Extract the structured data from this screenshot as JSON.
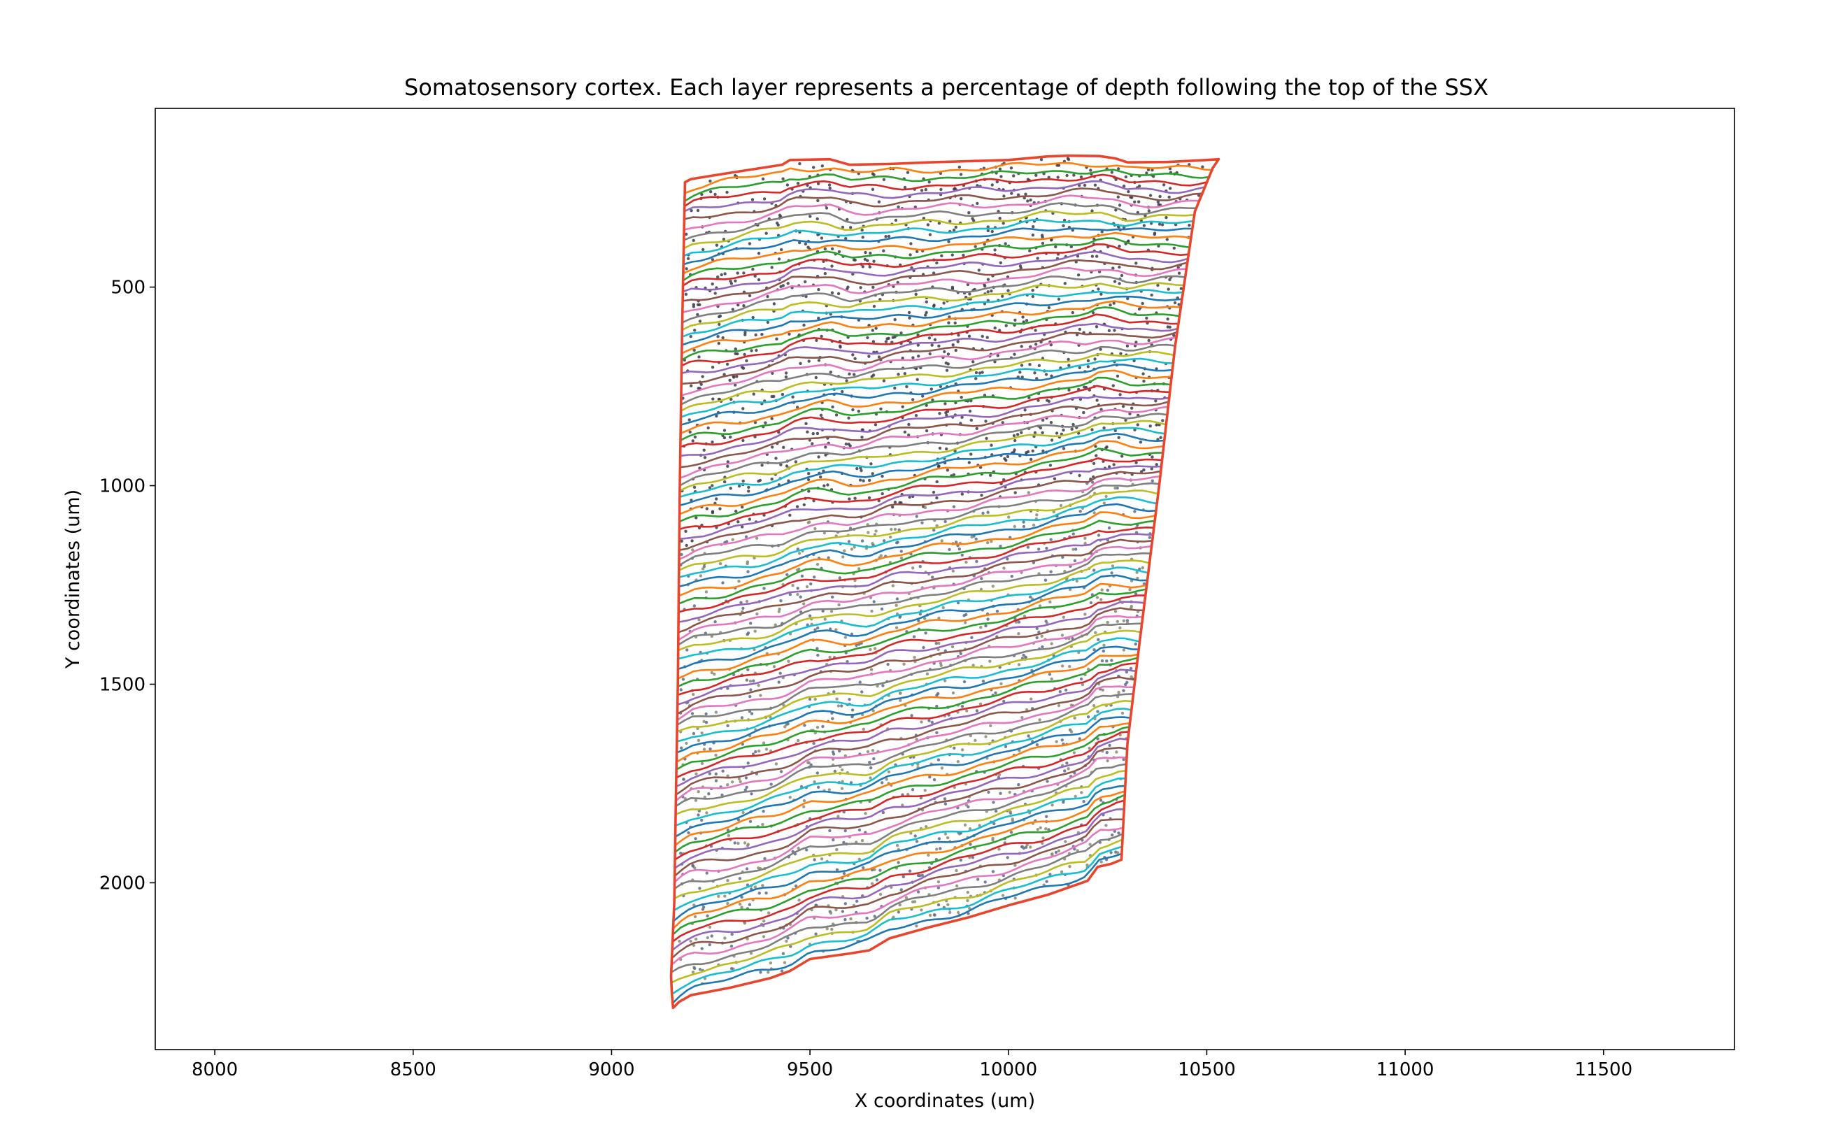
{
  "chart_data": {
    "type": "line",
    "title": "Somatosensory cortex. Each layer represents a percentage of depth following the top of the SSX",
    "xlabel": "X coordinates (um)",
    "ylabel": "Y coordinates (um)",
    "xlim": [
      7850,
      11830
    ],
    "ylim": [
      2420,
      50
    ],
    "y_inverted": true,
    "x_ticks": [
      8000,
      8500,
      9000,
      9500,
      10000,
      10500,
      11000,
      11500
    ],
    "y_ticks": [
      500,
      1000,
      1500,
      2000
    ],
    "grid": false,
    "legend": "none",
    "colors": [
      "#1f77b4",
      "#ff7f0e",
      "#2ca02c",
      "#d62728",
      "#9467bd",
      "#8c564b",
      "#e377c2",
      "#7f7f7f",
      "#bcbd22",
      "#17becf"
    ],
    "outline_color": "#e8452c",
    "point_color": "#3a3a4a",
    "layer_count": 100,
    "region": {
      "top_boundary": [
        [
          9185,
          236
        ],
        [
          9200,
          228
        ],
        [
          9300,
          212
        ],
        [
          9430,
          192
        ],
        [
          9450,
          180
        ],
        [
          9550,
          178
        ],
        [
          9600,
          192
        ],
        [
          9700,
          190
        ],
        [
          9800,
          186
        ],
        [
          9900,
          183
        ],
        [
          10000,
          180
        ],
        [
          10100,
          171
        ],
        [
          10150,
          169
        ],
        [
          10230,
          170
        ],
        [
          10270,
          176
        ],
        [
          10300,
          186
        ],
        [
          10400,
          185
        ],
        [
          10500,
          180
        ],
        [
          10530,
          178
        ]
      ],
      "bottom_boundary": [
        [
          9155,
          2315
        ],
        [
          9170,
          2300
        ],
        [
          9200,
          2283
        ],
        [
          9300,
          2264
        ],
        [
          9400,
          2240
        ],
        [
          9450,
          2222
        ],
        [
          9500,
          2192
        ],
        [
          9600,
          2178
        ],
        [
          9650,
          2170
        ],
        [
          9700,
          2140
        ],
        [
          9800,
          2112
        ],
        [
          9900,
          2087
        ],
        [
          10000,
          2057
        ],
        [
          10100,
          2030
        ],
        [
          10200,
          1995
        ],
        [
          10225,
          1960
        ],
        [
          10260,
          1952
        ],
        [
          10285,
          1942
        ]
      ],
      "left_boundary": [
        [
          9185,
          236
        ],
        [
          9178,
          600
        ],
        [
          9172,
          1000
        ],
        [
          9167,
          1500
        ],
        [
          9162,
          1800
        ],
        [
          9158,
          2050
        ],
        [
          9150,
          2235
        ],
        [
          9152,
          2280
        ],
        [
          9155,
          2315
        ]
      ],
      "right_boundary": [
        [
          10530,
          178
        ],
        [
          10515,
          200
        ],
        [
          10470,
          310
        ],
        [
          10420,
          650
        ],
        [
          10380,
          1000
        ],
        [
          10330,
          1400
        ],
        [
          10300,
          1650
        ],
        [
          10285,
          1942
        ]
      ]
    },
    "cell_points_count": 2600
  }
}
